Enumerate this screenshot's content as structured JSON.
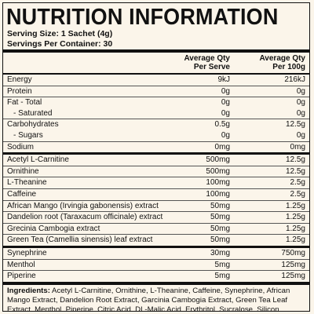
{
  "header": {
    "title": "NUTRITION INFORMATION",
    "serving_size": "Serving Size: 1 Sachet (4g)",
    "servings_per_container": "Servings Per Container: 30"
  },
  "table": {
    "columns": [
      [
        "Average Qty",
        "Per Serve"
      ],
      [
        "Average Qty",
        "Per 100g"
      ]
    ],
    "sections": [
      [
        [
          [
            "Energy",
            "9kJ",
            "216kJ"
          ]
        ],
        [
          [
            "Protein",
            "0g",
            "0g"
          ]
        ],
        [
          [
            "Fat - Total",
            "0g",
            "0g"
          ],
          [
            "- Saturated",
            "0g",
            "0g"
          ]
        ],
        [
          [
            "Carbohydrates",
            "0.5g",
            "12.5g"
          ],
          [
            "- Sugars",
            "0g",
            "0g"
          ]
        ],
        [
          [
            "Sodium",
            "0mg",
            "0mg"
          ]
        ]
      ],
      [
        [
          [
            "Acetyl L-Carnitine",
            "500mg",
            "12.5g"
          ]
        ],
        [
          [
            "Ornithine",
            "500mg",
            "12.5g"
          ]
        ],
        [
          [
            "L-Theanine",
            "100mg",
            "2.5g"
          ]
        ],
        [
          [
            "Caffeine",
            "100mg",
            "2.5g"
          ]
        ],
        [
          [
            "African Mango (Irvingia gabonensis) extract",
            "50mg",
            "1.25g"
          ]
        ],
        [
          [
            "Dandelion root (Taraxacum officinale) extract",
            "50mg",
            "1.25g"
          ]
        ],
        [
          [
            "Grecinia Cambogia extract",
            "50mg",
            "1.25g"
          ]
        ],
        [
          [
            "Green Tea (Camellia sinensis) leaf extract",
            "50mg",
            "1.25g"
          ]
        ]
      ],
      [
        [
          [
            "Synephrine",
            "30mg",
            "750mg"
          ]
        ],
        [
          [
            "Menthol",
            "5mg",
            "125mg"
          ]
        ],
        [
          [
            "Piperine",
            "5mg",
            "125mg"
          ]
        ]
      ]
    ]
  },
  "ingredients": {
    "label": "Ingredients:",
    "text": "Acetyl L-Carnitine, Ornithine, L-Theanine, Caffeine, Synephrine, African Mango Extract, Dandelion Root Extract, Garcinia Cambogia Extract, Green Tea Leaf Extract, Menthol, Piperine, Citric Acid, DL-Malic Acid, Erythritol, Sucralose, Silicon Dioxide, Natural Flavour, Artificial Flavour."
  }
}
